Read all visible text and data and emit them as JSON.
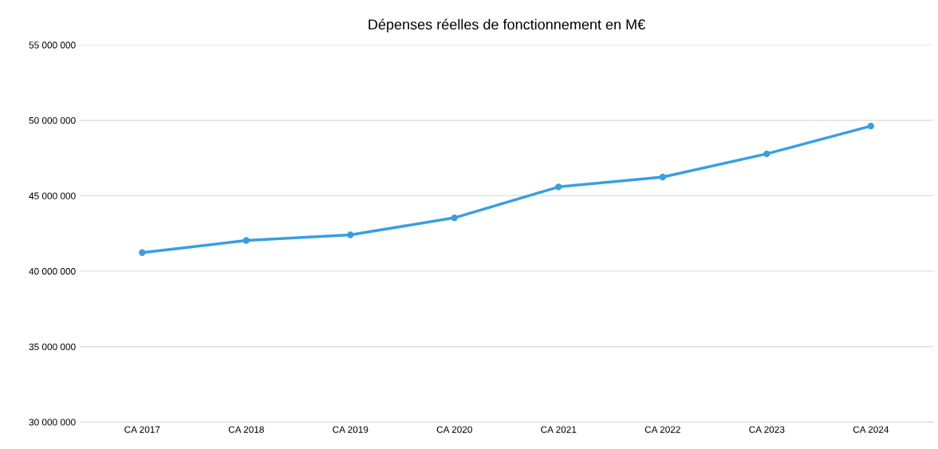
{
  "chart_data": {
    "type": "line",
    "title": "Dépenses réelles de fonctionnement en M€",
    "categories": [
      "CA 2017",
      "CA 2018",
      "CA 2019",
      "CA 2020",
      "CA 2021",
      "CA 2022",
      "CA 2023",
      "CA 2024"
    ],
    "series": [
      {
        "color": "#3a9ee2",
        "values": [
          41230000,
          42040000,
          42410000,
          43540000,
          45590000,
          46240000,
          47780000,
          49620000
        ]
      }
    ],
    "ylim": [
      30000000,
      55000000
    ],
    "yticks": [
      {
        "value": 30000000,
        "label": "30 000 000"
      },
      {
        "value": 35000000,
        "label": "35 000 000"
      },
      {
        "value": 40000000,
        "label": "40 000 000"
      },
      {
        "value": 45000000,
        "label": "45 000 000"
      },
      {
        "value": 50000000,
        "label": "50 000 000"
      },
      {
        "value": 55000000,
        "label": "55 000 000"
      }
    ],
    "grid": "y",
    "marker": "circle",
    "line_style": "solid"
  }
}
